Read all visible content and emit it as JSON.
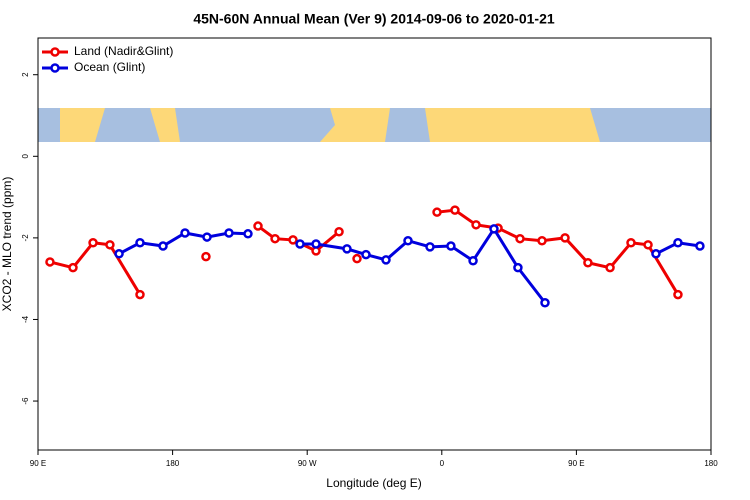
{
  "chart_data": {
    "type": "line",
    "title": "45N-60N Annual Mean (Ver 9)   2014-09-06 to 2020-01-21",
    "x_label": "Longitude (deg E)",
    "y_label": "XCO2 - MLO trend (ppm)",
    "legend": "top-left",
    "xlim": [
      90,
      540
    ],
    "ylim": [
      -7.2,
      2.9
    ],
    "xticks": [
      {
        "value": 90,
        "label": "90 E"
      },
      180,
      {
        "value": 270,
        "label": "90 W"
      },
      {
        "value": 360,
        "label": "0"
      },
      {
        "value": 450,
        "label": "90 E"
      },
      {
        "value": 540,
        "label": "180"
      }
    ],
    "yticks": [
      -6,
      -4,
      -2,
      0,
      2
    ],
    "series": [
      {
        "name": "Land (Nadir&Glint)",
        "color": "#ee0000",
        "x": [
          98.0,
          113.4,
          126.8,
          138.1,
          158.2,
          null,
          202.3,
          null,
          237.1,
          248.5,
          260.5,
          275.9,
          291.3,
          null,
          303.3,
          null,
          356.8,
          368.8,
          382.9,
          397.6,
          412.3,
          427.0,
          442.4,
          457.7,
          472.5,
          486.5,
          497.9,
          517.9
        ],
        "values": [
          -2.59,
          -2.73,
          -2.12,
          -2.17,
          -3.39,
          null,
          -2.46,
          null,
          -1.71,
          -2.02,
          -2.05,
          -2.32,
          -1.85,
          null,
          -2.51,
          null,
          -1.37,
          -1.32,
          -1.68,
          -1.76,
          -2.02,
          -2.07,
          -2.0,
          -2.61,
          -2.73,
          -2.12,
          -2.17,
          -3.39
        ]
      },
      {
        "name": "Ocean (Glint)",
        "color": "#0000dd",
        "x": [
          144.2,
          158.2,
          173.6,
          188.3,
          203.0,
          217.7,
          230.4,
          null,
          265.2,
          275.9,
          296.6,
          309.3,
          322.7,
          337.4,
          352.1,
          366.1,
          380.9,
          394.9,
          410.9,
          429.0,
          null,
          503.2,
          517.9,
          532.6
        ],
        "values": [
          -2.39,
          -2.12,
          -2.2,
          -1.88,
          -1.98,
          -1.88,
          -1.9,
          null,
          -2.15,
          -2.15,
          -2.27,
          -2.41,
          -2.54,
          -2.07,
          -2.22,
          -2.2,
          -2.56,
          -1.78,
          -2.73,
          -3.59,
          null,
          -2.39,
          -2.12,
          -2.2
        ]
      }
    ]
  }
}
